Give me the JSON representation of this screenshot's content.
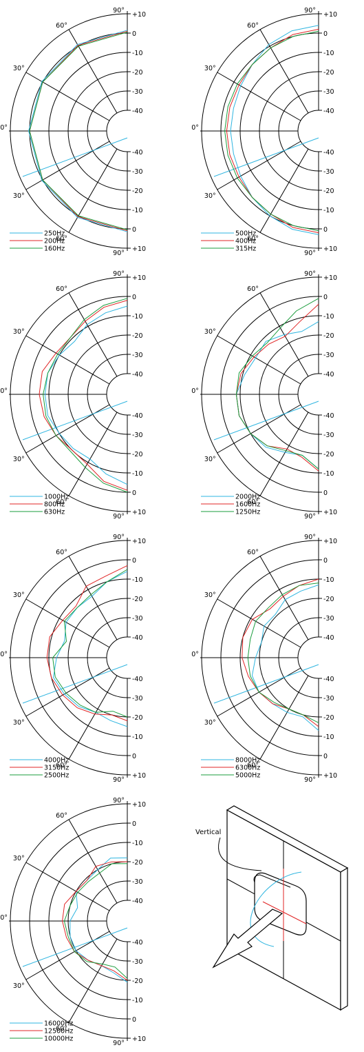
{
  "colors": {
    "line1": "#2eb5e0",
    "line2": "#e02424",
    "line3": "#1a9c3c",
    "axis": "#000000"
  },
  "scale": {
    "db_ticks_top": [
      "+10",
      "0",
      "-10",
      "-20",
      "-30",
      "-40"
    ],
    "db_ticks_bottom": [
      "-40",
      "-30",
      "-20",
      "-10",
      "0",
      "+10"
    ]
  },
  "diagram": {
    "label": "Vertical"
  },
  "chart_data": [
    {
      "type": "polar",
      "r_range": [
        -40,
        10
      ],
      "theta_range": [
        -90,
        90
      ],
      "angle_labels": [
        "90°",
        "60°",
        "30°",
        "0°",
        "30°",
        "60°",
        "90°"
      ],
      "series": [
        {
          "name": "250Hz",
          "angles": [
            -90,
            -60,
            -30,
            0,
            30,
            60,
            90
          ],
          "values": [
            1.5,
            1,
            0.5,
            0.5,
            0.5,
            1,
            1.5
          ]
        },
        {
          "name": "200Hz",
          "angles": [
            -90,
            -60,
            -30,
            0,
            30,
            60,
            90
          ],
          "values": [
            1,
            0.5,
            0,
            0,
            0,
            0.5,
            1
          ]
        },
        {
          "name": "160Hz",
          "angles": [
            -90,
            -60,
            -30,
            0,
            30,
            60,
            90
          ],
          "values": [
            0.5,
            0,
            0,
            0,
            0,
            0,
            0.5
          ]
        }
      ]
    },
    {
      "type": "polar",
      "r_range": [
        -40,
        10
      ],
      "theta_range": [
        -90,
        90
      ],
      "angle_labels": [
        "90°",
        "60°",
        "30°",
        "0°",
        "30°",
        "60°",
        "90°"
      ],
      "series": [
        {
          "name": "500Hz",
          "angles": [
            -90,
            -75,
            -60,
            -45,
            -30,
            -15,
            0,
            15,
            30,
            45,
            60,
            75,
            90
          ],
          "values": [
            4,
            3,
            1,
            -2,
            -4,
            -5,
            -5,
            -5,
            -4,
            -2,
            0,
            2,
            3
          ]
        },
        {
          "name": "400Hz",
          "angles": [
            -90,
            -75,
            -60,
            -45,
            -30,
            -15,
            0,
            15,
            30,
            45,
            60,
            75,
            90
          ],
          "values": [
            2,
            1,
            -1,
            -2,
            -3,
            -3,
            -3,
            -3,
            -3,
            -2,
            -1,
            1,
            2
          ]
        },
        {
          "name": "315Hz",
          "angles": [
            -90,
            -75,
            -60,
            -45,
            -30,
            -15,
            0,
            15,
            30,
            45,
            60,
            75,
            90
          ],
          "values": [
            1,
            0,
            -1,
            -2,
            -2,
            -2,
            -2,
            -2,
            -2,
            -2,
            -1,
            0,
            1
          ]
        }
      ]
    },
    {
      "type": "polar",
      "r_range": [
        -40,
        10
      ],
      "theta_range": [
        -90,
        90
      ],
      "angle_labels": [
        "90°",
        "60°",
        "30°",
        "0°",
        "30°",
        "60°",
        "90°"
      ],
      "series": [
        {
          "name": "1000Hz",
          "angles": [
            -90,
            -75,
            -60,
            -45,
            -30,
            -15,
            0,
            15,
            30,
            45,
            60,
            75,
            90
          ],
          "values": [
            -5,
            -7,
            -9,
            -12,
            -10,
            -8,
            -8,
            -8,
            -10,
            -11,
            -12,
            -8,
            -4
          ]
        },
        {
          "name": "800Hz",
          "angles": [
            -90,
            -75,
            -60,
            -45,
            -30,
            -15,
            0,
            15,
            30,
            45,
            60,
            75,
            90
          ],
          "values": [
            -2,
            -4,
            -7,
            -9,
            -8,
            -5,
            -5,
            -6,
            -8,
            -10,
            -9,
            -4,
            -1
          ]
        },
        {
          "name": "630Hz",
          "angles": [
            -90,
            -75,
            -60,
            -45,
            -30,
            -15,
            0,
            15,
            30,
            45,
            60,
            75,
            90
          ],
          "values": [
            -1,
            -3,
            -6,
            -9,
            -9,
            -8,
            -7,
            -7,
            -8,
            -9,
            -7,
            -3,
            0
          ]
        }
      ]
    },
    {
      "type": "polar",
      "r_range": [
        -40,
        10
      ],
      "theta_range": [
        -90,
        90
      ],
      "angle_labels": [
        "90°",
        "60°",
        "30°",
        "0°",
        "30°",
        "60°",
        "90°"
      ],
      "series": [
        {
          "name": "2000Hz",
          "angles": [
            -90,
            -75,
            -60,
            -45,
            -30,
            -15,
            0,
            15,
            30,
            45,
            60,
            75,
            90
          ],
          "values": [
            -13,
            -17,
            -15,
            -12,
            -13,
            -11,
            -8,
            -8,
            -10,
            -12,
            -16,
            -18,
            -12
          ]
        },
        {
          "name": "1600Hz",
          "angles": [
            -90,
            -75,
            -60,
            -45,
            -30,
            -15,
            0,
            15,
            30,
            45,
            60,
            75,
            90
          ],
          "values": [
            -4,
            -12,
            -16,
            -14,
            -12,
            -9,
            -8,
            -8,
            -10,
            -13,
            -18,
            -17,
            -11
          ]
        },
        {
          "name": "1250Hz",
          "angles": [
            -90,
            -75,
            -60,
            -45,
            -30,
            -15,
            0,
            15,
            30,
            45,
            60,
            75,
            90
          ],
          "values": [
            -1,
            -6,
            -11,
            -13,
            -11,
            -8,
            -8,
            -8,
            -10,
            -13,
            -17,
            -18,
            -12
          ]
        }
      ]
    },
    {
      "type": "polar",
      "r_range": [
        -40,
        10
      ],
      "theta_range": [
        -90,
        90
      ],
      "angle_labels": [
        "90°",
        "60°",
        "30°",
        "0°",
        "30°",
        "60°",
        "90°"
      ],
      "series": [
        {
          "name": "4000Hz",
          "angles": [
            -90,
            -75,
            -60,
            -45,
            -30,
            -15,
            0,
            15,
            30,
            45,
            60,
            75,
            90
          ],
          "values": [
            -6,
            -10,
            -14,
            -14,
            -14,
            -17,
            -14,
            -11,
            -13,
            -15,
            -18,
            -17,
            -15
          ]
        },
        {
          "name": "3150Hz",
          "angles": [
            -90,
            -75,
            -60,
            -45,
            -30,
            -15,
            0,
            15,
            30,
            45,
            60,
            75,
            90
          ],
          "values": [
            -3,
            -7,
            -8,
            -13,
            -12,
            -9,
            -9,
            -10,
            -12,
            -14,
            -17,
            -20,
            -18
          ]
        },
        {
          "name": "2500Hz",
          "angles": [
            -90,
            -75,
            -60,
            -45,
            -30,
            -15,
            0,
            15,
            30,
            45,
            60,
            75,
            90
          ],
          "values": [
            -5,
            -10,
            -13,
            -14,
            -13,
            -18,
            -12,
            -12,
            -14,
            -16,
            -18,
            -22,
            -20
          ]
        }
      ]
    },
    {
      "type": "polar",
      "r_range": [
        -40,
        10
      ],
      "theta_range": [
        -90,
        90
      ],
      "angle_labels": [
        "90°",
        "60°",
        "30°",
        "0°",
        "30°",
        "60°",
        "90°"
      ],
      "series": [
        {
          "name": "8000Hz",
          "angles": [
            -90,
            -75,
            -60,
            -45,
            -30,
            -15,
            0,
            15,
            30,
            45,
            60,
            75,
            90
          ],
          "values": [
            -13,
            -15,
            -16,
            -19,
            -18,
            -20,
            -18,
            -15,
            -15,
            -17,
            -18,
            -19,
            -13
          ]
        },
        {
          "name": "6300Hz",
          "angles": [
            -90,
            -75,
            -60,
            -45,
            -30,
            -15,
            0,
            15,
            30,
            45,
            60,
            75,
            90
          ],
          "values": [
            -10,
            -12,
            -14,
            -15,
            -11,
            -10,
            -11,
            -13,
            -15,
            -17,
            -20,
            -20,
            -15
          ]
        },
        {
          "name": "5000Hz",
          "angles": [
            -90,
            -75,
            -60,
            -45,
            -30,
            -15,
            0,
            15,
            30,
            45,
            60,
            75,
            90
          ],
          "values": [
            -12,
            -12,
            -13,
            -14,
            -13,
            -14,
            -14,
            -14,
            -15,
            -18,
            -20,
            -20,
            -17
          ]
        }
      ]
    },
    {
      "type": "polar",
      "r_range": [
        -40,
        10
      ],
      "theta_range": [
        -90,
        90
      ],
      "angle_labels": [
        "90°",
        "60°",
        "30°",
        "0°",
        "30°",
        "60°",
        "90°"
      ],
      "series": [
        {
          "name": "16000Hz",
          "angles": [
            -90,
            -75,
            -60,
            -45,
            -30,
            -15,
            0,
            15,
            30,
            45,
            60,
            75,
            90
          ],
          "values": [
            -18,
            -17,
            -20,
            -21,
            -20,
            -24,
            -21,
            -20,
            -20,
            -22,
            -24,
            -23,
            -19
          ]
        },
        {
          "name": "12500Hz",
          "angles": [
            -90,
            -75,
            -60,
            -45,
            -30,
            -15,
            0,
            15,
            30,
            45,
            60,
            75,
            90
          ],
          "values": [
            -20,
            -19,
            -18,
            -21,
            -20,
            -17,
            -17,
            -18,
            -19,
            -22,
            -24,
            -24,
            -20
          ]
        },
        {
          "name": "10000Hz",
          "angles": [
            -90,
            -75,
            -60,
            -45,
            -30,
            -15,
            0,
            15,
            30,
            45,
            60,
            75,
            90
          ],
          "values": [
            -21,
            -20,
            -22,
            -22,
            -21,
            -20,
            -18,
            -19,
            -19,
            -21,
            -25,
            -26,
            -21
          ]
        }
      ]
    }
  ]
}
